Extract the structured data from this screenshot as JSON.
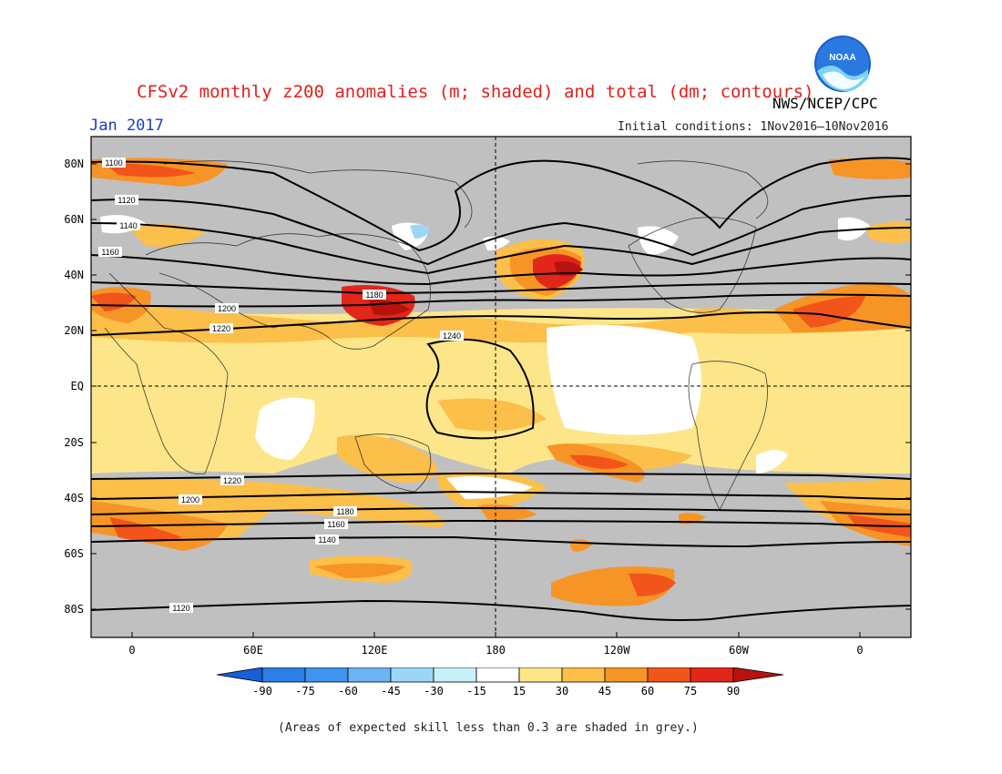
{
  "header": {
    "title": "CFSv2 monthly z200 anomalies (m; shaded) and total (dm; contours)",
    "month": "Jan 2017",
    "agency": "NWS/NCEP/CPC",
    "initial_conditions": "Initial conditions: 1Nov2016–10Nov2016",
    "logo_text": "NOAA"
  },
  "axes": {
    "y_labels": [
      "80N",
      "60N",
      "40N",
      "20N",
      "EQ",
      "20S",
      "40S",
      "60S",
      "80S"
    ],
    "x_labels": [
      "0",
      "60E",
      "120E",
      "180",
      "120W",
      "60W",
      "0"
    ]
  },
  "contour_labels": [
    "1100",
    "1120",
    "1140",
    "1160",
    "1180",
    "1200",
    "1220",
    "1240",
    "1220",
    "1200",
    "1180",
    "1160",
    "1140",
    "1120"
  ],
  "colorbar": {
    "labels": [
      "-90",
      "-75",
      "-60",
      "-45",
      "-30",
      "-15",
      "15",
      "30",
      "45",
      "60",
      "75",
      "90"
    ],
    "colors": [
      "#1560d8",
      "#2b7fe6",
      "#3f94ee",
      "#6ab4f4",
      "#9bd6f8",
      "#c8f0f8",
      "#ffffff",
      "#fde68a",
      "#fbbf4a",
      "#f79426",
      "#f2541a",
      "#e2261a",
      "#b8120e"
    ]
  },
  "footnote": "(Areas of expected skill less than 0.3 are shaded in grey.)",
  "colors": {
    "grey_mask": "#c0c0c0",
    "weak_positive": "#fde68a",
    "moderate_positive": "#fbbf4a",
    "strong_positive": "#f79426",
    "very_strong_positive": "#f2541a",
    "extreme_positive": "#e2261a",
    "negative_light": "#c8f0f8",
    "contour": "#000000"
  }
}
